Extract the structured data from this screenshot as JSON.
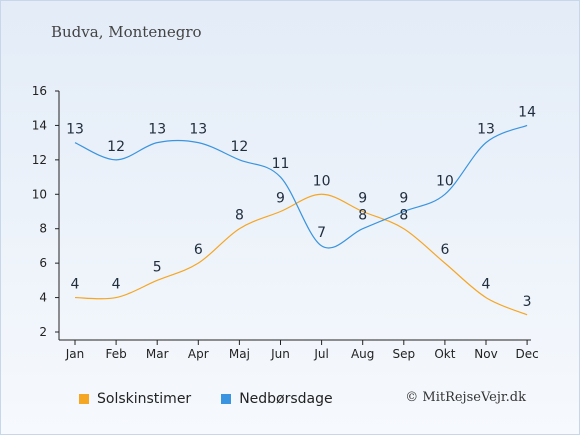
{
  "chart_data": {
    "type": "line",
    "title": "Budva, Montenegro",
    "categories": [
      "Jan",
      "Feb",
      "Mar",
      "Apr",
      "Maj",
      "Jun",
      "Jul",
      "Aug",
      "Sep",
      "Okt",
      "Nov",
      "Dec"
    ],
    "series": [
      {
        "name": "Solskinstimer",
        "color": "#f5a623",
        "values": [
          4,
          4,
          5,
          6,
          8,
          9,
          10,
          9,
          8,
          6,
          4,
          3
        ]
      },
      {
        "name": "Nedbørsdage",
        "color": "#3a94df",
        "values": [
          13,
          12,
          13,
          13,
          12,
          11,
          7,
          8,
          9,
          10,
          13,
          14
        ]
      }
    ],
    "yticks": [
      2,
      4,
      6,
      8,
      10,
      12,
      14,
      16
    ],
    "ylim": [
      2,
      16
    ],
    "xlabel": "",
    "ylabel": "",
    "grid": false,
    "legend_position": "bottom"
  },
  "copyright": "© MitRejseVejr.dk"
}
